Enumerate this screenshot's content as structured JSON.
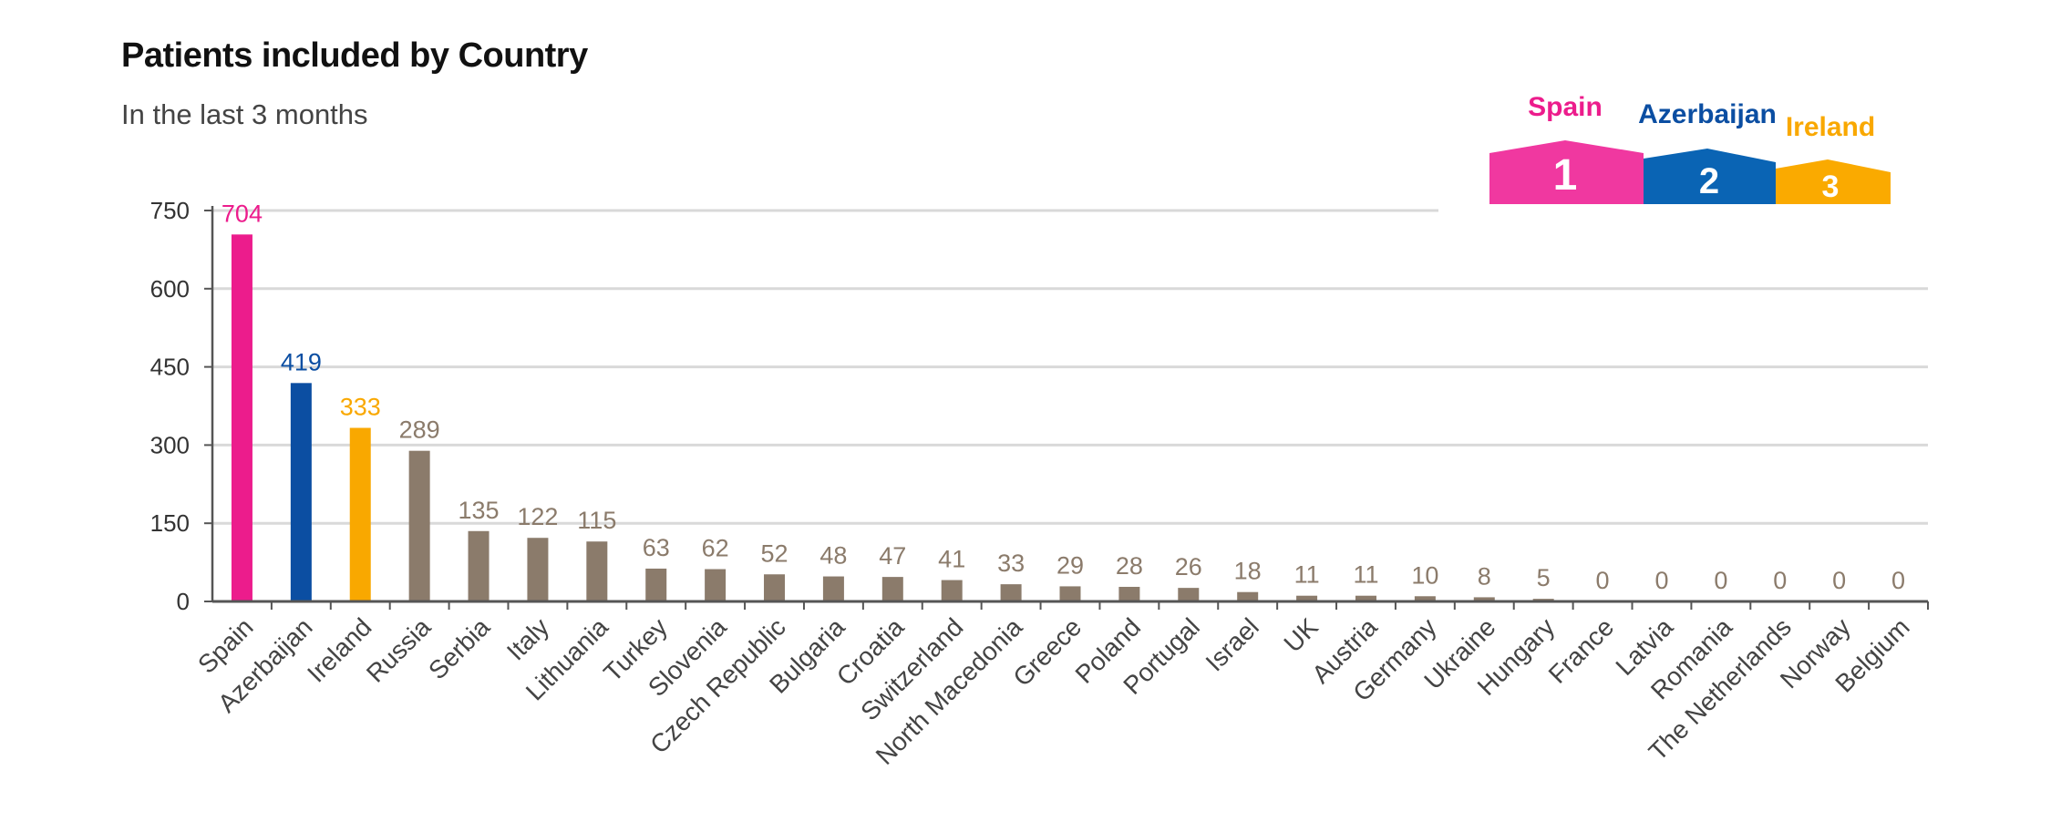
{
  "title": "Patients included by Country",
  "subtitle": "In the last 3 months",
  "colors": {
    "first": "#EC1C8C",
    "second": "#0B4EA2",
    "third": "#F9A800",
    "other": "#8B7B6B",
    "grid": "#D9D9D9",
    "axis": "#555555",
    "podium_first": "#F038A0",
    "podium_second": "#0A64B4",
    "podium_third": "#FAAA00"
  },
  "podium": [
    {
      "name": "Spain",
      "rank": "1"
    },
    {
      "name": "Azerbaijan",
      "rank": "2"
    },
    {
      "name": "Ireland",
      "rank": "3"
    }
  ],
  "chart_data": {
    "type": "bar",
    "title": "Patients included by Country",
    "subtitle": "In the last 3 months",
    "xlabel": "",
    "ylabel": "",
    "ylim": [
      0,
      750
    ],
    "yticks": [
      "0",
      "150",
      "300",
      "450",
      "600",
      "750"
    ],
    "grid": true,
    "categories": [
      "Spain",
      "Azerbaijan",
      "Ireland",
      "Russia",
      "Serbia",
      "Italy",
      "Lithuania",
      "Turkey",
      "Slovenia",
      "Czech Republic",
      "Bulgaria",
      "Croatia",
      "Switzerland",
      "North Macedonia",
      "Greece",
      "Poland",
      "Portugal",
      "Israel",
      "UK",
      "Austria",
      "Germany",
      "Ukraine",
      "Hungary",
      "France",
      "Latvia",
      "Romania",
      "The Netherlands",
      "Norway",
      "Belgium"
    ],
    "values": [
      704,
      419,
      333,
      289,
      135,
      122,
      115,
      63,
      62,
      52,
      48,
      47,
      41,
      33,
      29,
      28,
      26,
      18,
      11,
      11,
      10,
      8,
      5,
      0,
      0,
      0,
      0,
      0,
      0
    ]
  }
}
